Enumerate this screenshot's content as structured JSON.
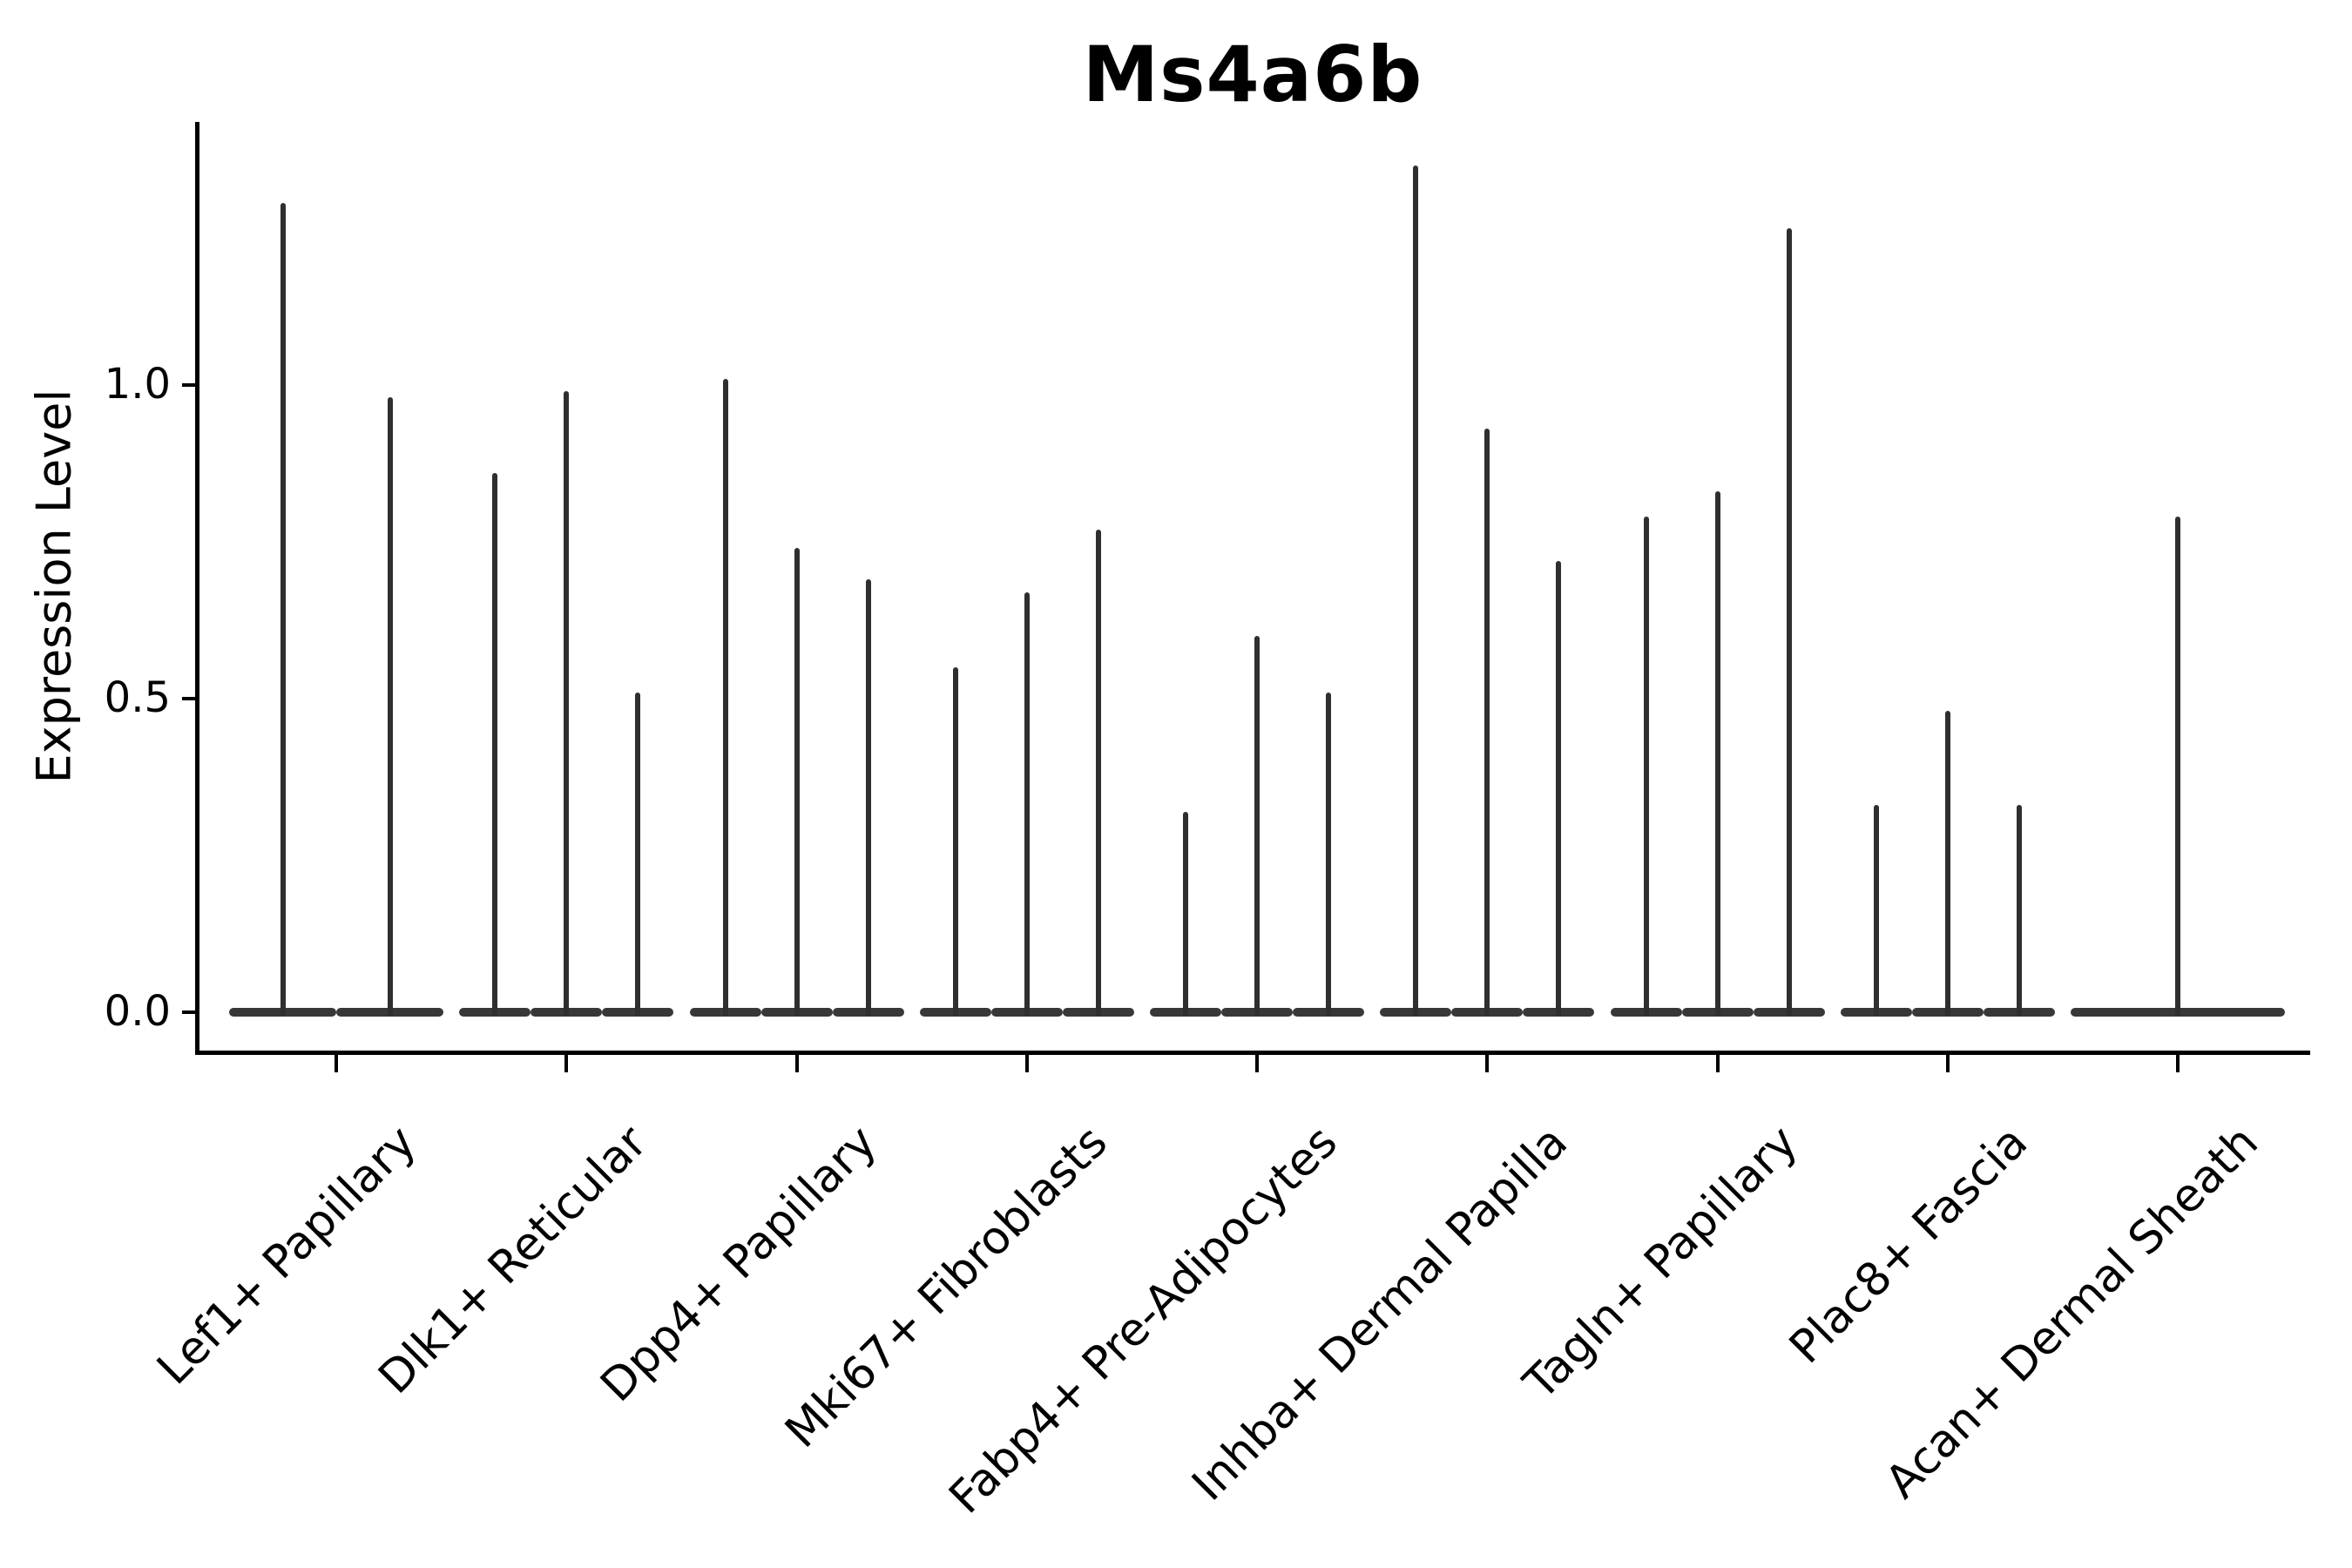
{
  "title": "Ms4a6b",
  "axes": {
    "y_label": "Expression Level",
    "y_tick_labels": [
      "0.0",
      "0.5",
      "1.0"
    ]
  },
  "colors": {
    "violin_body": "#383838",
    "violin_spike": "#2f2f2f",
    "spine": "#000000",
    "text": "#000000",
    "background": "#ffffff"
  },
  "chart_data": {
    "type": "violin",
    "title": "Ms4a6b",
    "xlabel": "",
    "ylabel": "Expression Level",
    "ylim": [
      -0.06,
      1.42
    ],
    "y_ticks": [
      0.0,
      0.5,
      1.0
    ],
    "grid": false,
    "legend_position": "none",
    "categories": [
      "Lef1+ Papillary",
      "Dlk1+ Reticular",
      "Dpp4+ Papillary",
      "Mki67+ Fibroblasts",
      "Fabp4+ Pre-Adipocytes",
      "Inhba+ Dermal Papilla",
      "Tagln+ Papillary",
      "Plac8+ Fascia",
      "Acan+ Dermal Sheath"
    ],
    "description": "Needle-thin violins: each category shows flat density mass at 0 with thin spikes reaching the maximum expression of each sub-violin.",
    "groups": [
      {
        "category": "Lef1+ Papillary",
        "violin_maxima": [
          1.29,
          0.98
        ]
      },
      {
        "category": "Dlk1+ Reticular",
        "violin_maxima": [
          0.86,
          0.99,
          0.51
        ]
      },
      {
        "category": "Dpp4+ Papillary",
        "violin_maxima": [
          1.01,
          0.74,
          0.69
        ]
      },
      {
        "category": "Mki67+ Fibroblasts",
        "violin_maxima": [
          0.55,
          0.67,
          0.77
        ]
      },
      {
        "category": "Fabp4+ Pre-Adipocytes",
        "violin_maxima": [
          0.32,
          0.6,
          0.51
        ]
      },
      {
        "category": "Inhba+ Dermal Papilla",
        "violin_maxima": [
          1.35,
          0.93,
          0.72
        ]
      },
      {
        "category": "Tagln+ Papillary",
        "violin_maxima": [
          0.79,
          0.83,
          1.25
        ]
      },
      {
        "category": "Plac8+ Fascia",
        "violin_maxima": [
          0.33,
          0.48,
          0.33
        ]
      },
      {
        "category": "Acan+ Dermal Sheath",
        "violin_maxima": [
          0.79
        ]
      }
    ]
  }
}
